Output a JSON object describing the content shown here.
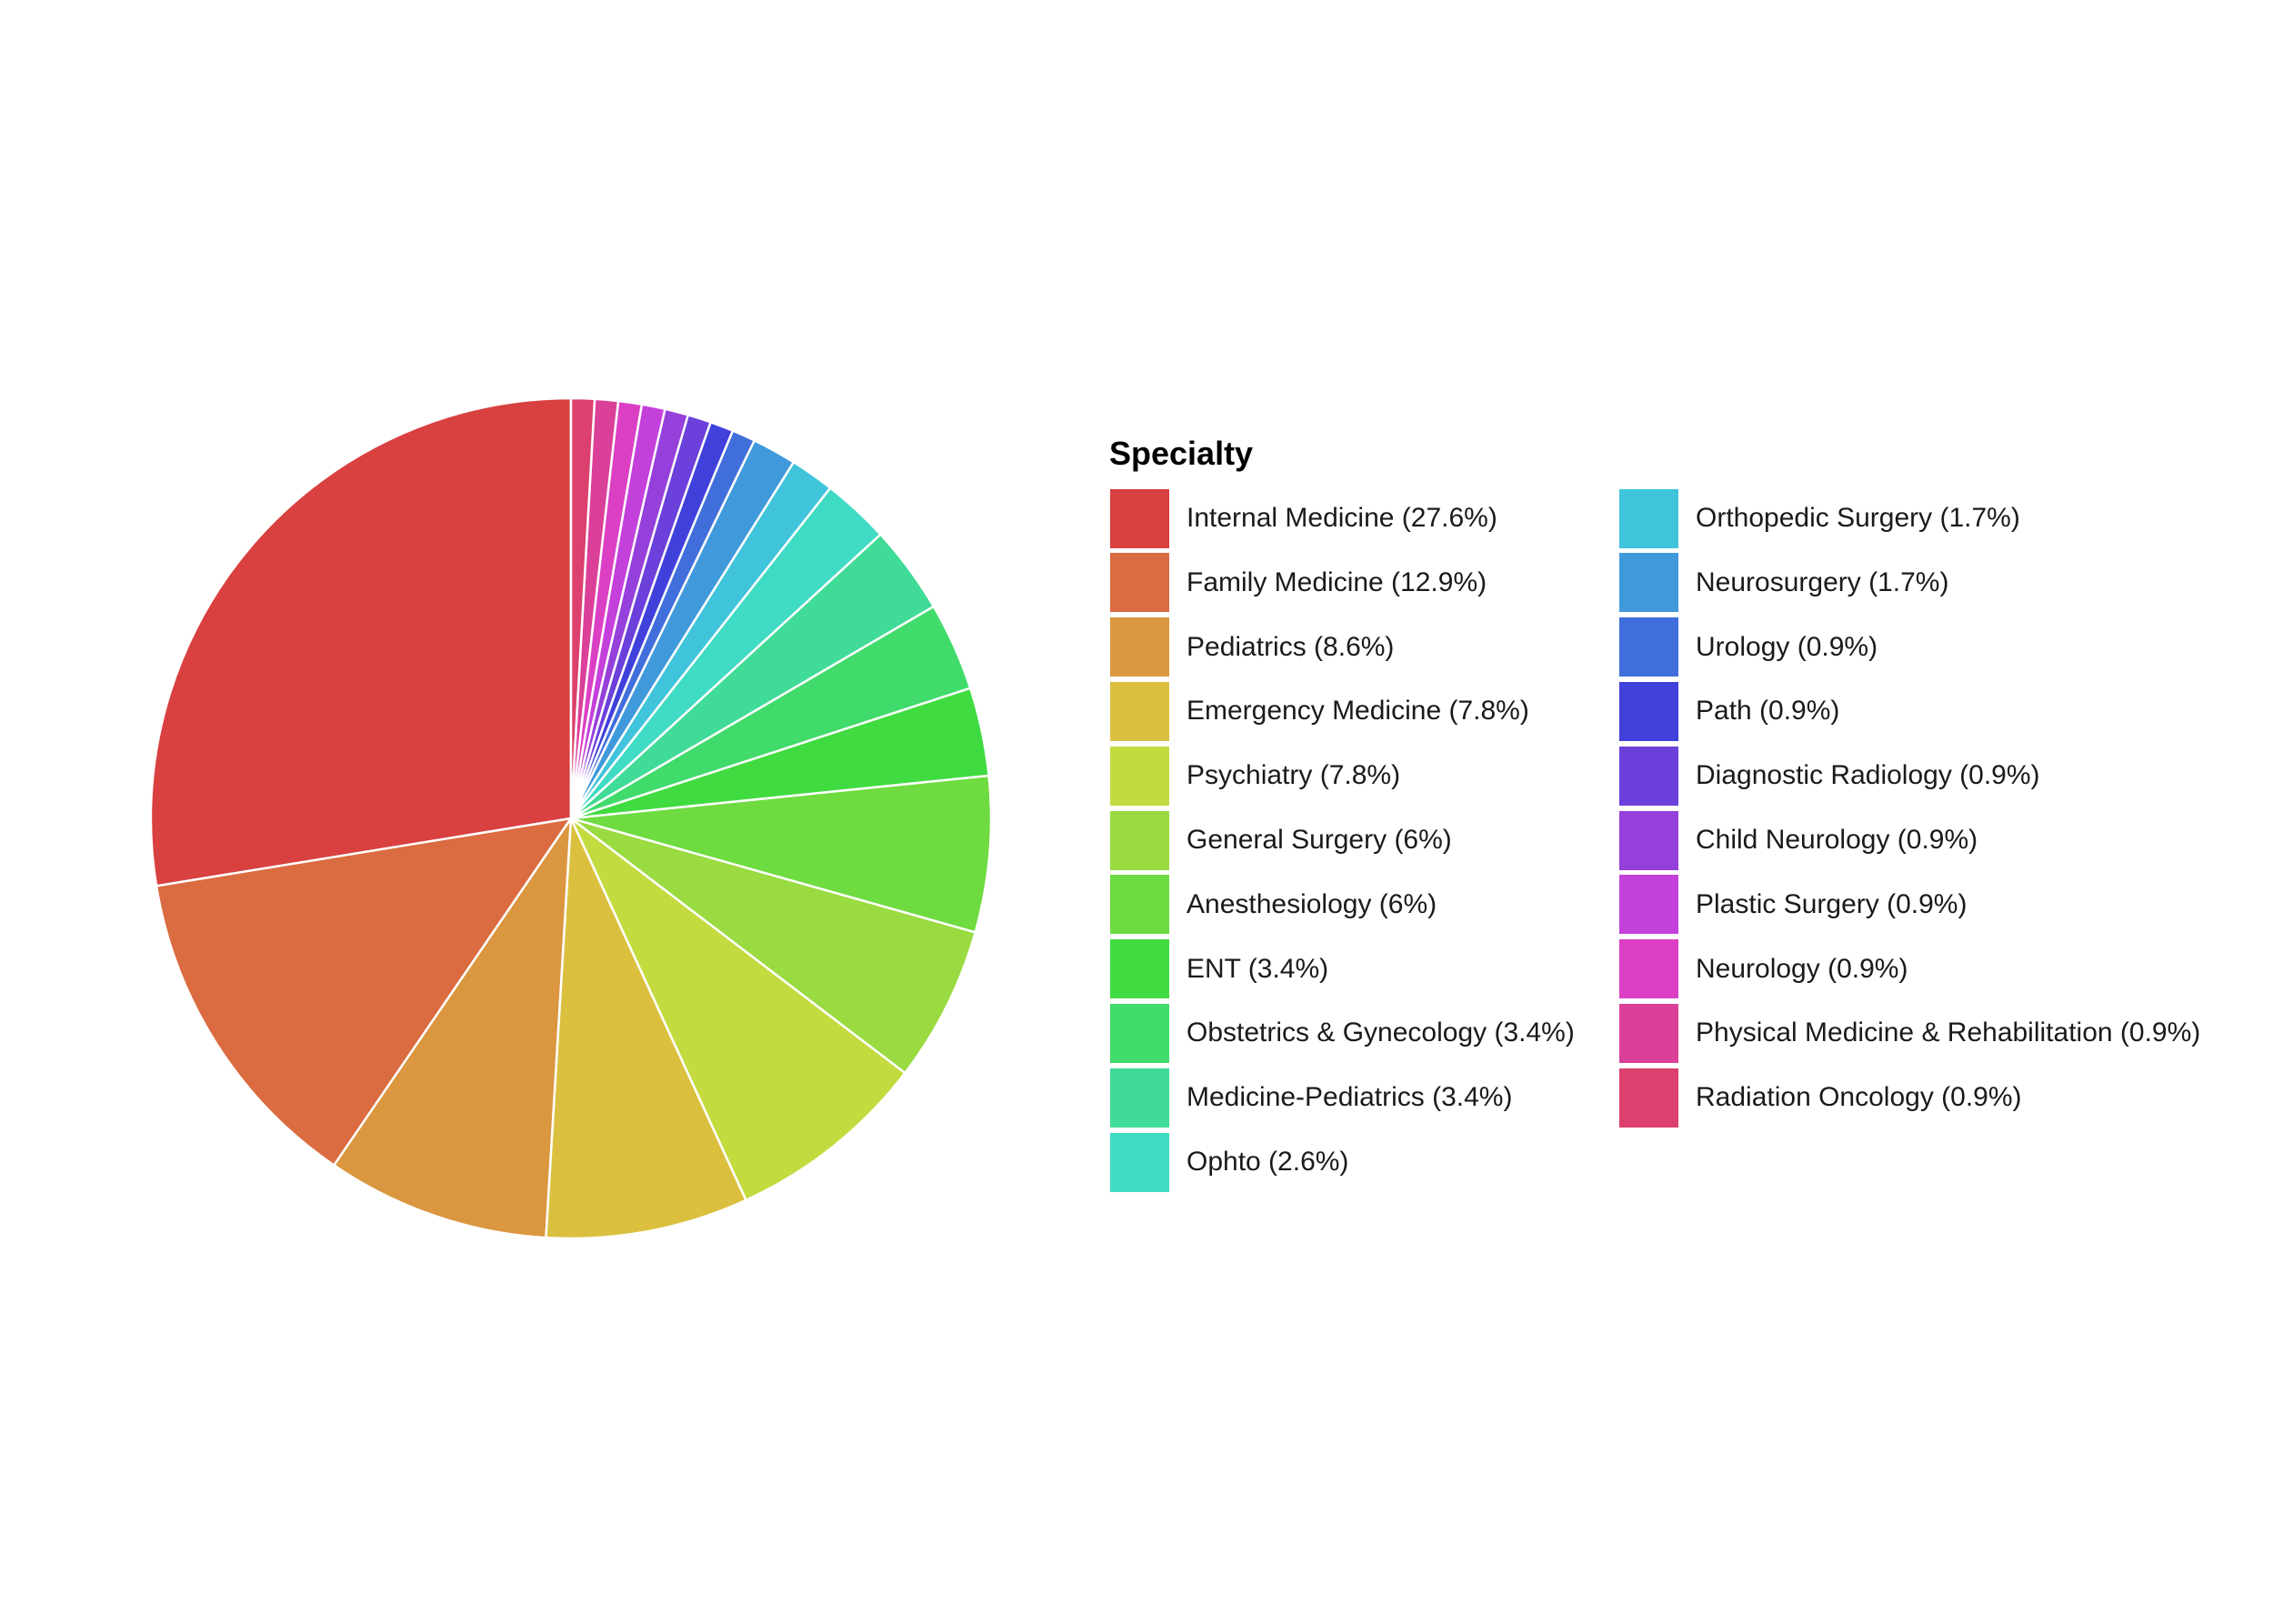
{
  "chart_data": {
    "type": "pie",
    "legend_title": "Specialty",
    "legend_position": "right",
    "slices": [
      {
        "label": "Internal Medicine (27.6%)",
        "value": 27.6,
        "color": "#D94040"
      },
      {
        "label": "Family Medicine (12.9%)",
        "value": 12.9,
        "color": "#DB6B40"
      },
      {
        "label": "Pediatrics (8.6%)",
        "value": 8.6,
        "color": "#DB9640"
      },
      {
        "label": "Emergency Medicine (7.8%)",
        "value": 7.8,
        "color": "#DBC040"
      },
      {
        "label": "Psychiatry (7.8%)",
        "value": 7.8,
        "color": "#C4DB40"
      },
      {
        "label": "General Surgery (6%)",
        "value": 6.0,
        "color": "#99DB40"
      },
      {
        "label": "Anesthesiology (6%)",
        "value": 6.0,
        "color": "#6EDB40"
      },
      {
        "label": "ENT (3.4%)",
        "value": 3.4,
        "color": "#40DB40"
      },
      {
        "label": "Obstetrics & Gynecology (3.4%)",
        "value": 3.4,
        "color": "#40DB6B"
      },
      {
        "label": "Medicine-Pediatrics (3.4%)",
        "value": 3.4,
        "color": "#40DB96"
      },
      {
        "label": "Ophto (2.6%)",
        "value": 2.6,
        "color": "#40DBC4"
      },
      {
        "label": "Orthopedic Surgery (1.7%)",
        "value": 1.7,
        "color": "#40C4DB"
      },
      {
        "label": "Neurosurgery (1.7%)",
        "value": 1.7,
        "color": "#4099DB"
      },
      {
        "label": "Urology (0.9%)",
        "value": 0.9,
        "color": "#406EDB"
      },
      {
        "label": "Path (0.9%)",
        "value": 0.9,
        "color": "#4040DB"
      },
      {
        "label": "Diagnostic Radiology (0.9%)",
        "value": 0.9,
        "color": "#6B40DB"
      },
      {
        "label": "Child Neurology (0.9%)",
        "value": 0.9,
        "color": "#9640DB"
      },
      {
        "label": "Plastic Surgery (0.9%)",
        "value": 0.9,
        "color": "#C440DB"
      },
      {
        "label": "Neurology (0.9%)",
        "value": 0.9,
        "color": "#DB40C4"
      },
      {
        "label": "Physical Medicine & Rehabilitation (0.9%)",
        "value": 0.9,
        "color": "#DB4099"
      },
      {
        "label": "Radiation Oncology (0.9%)",
        "value": 0.9,
        "color": "#DB406E"
      }
    ]
  }
}
